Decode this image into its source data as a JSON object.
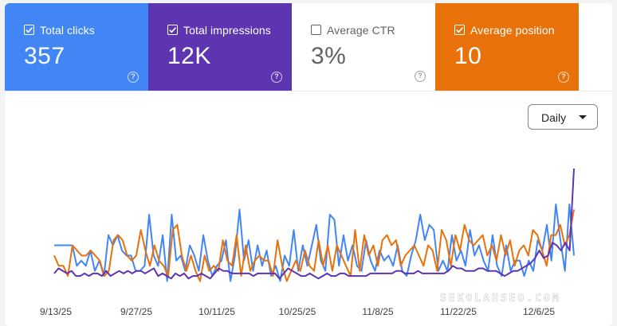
{
  "metrics": [
    {
      "label": "Total clicks",
      "value": "357",
      "checked": true,
      "color": "#4285f4"
    },
    {
      "label": "Total impressions",
      "value": "12K",
      "checked": true,
      "color": "#5e35b1"
    },
    {
      "label": "Average CTR",
      "value": "3%",
      "checked": false,
      "color": "#ffffff"
    },
    {
      "label": "Average position",
      "value": "10",
      "checked": true,
      "color": "#e8710a"
    }
  ],
  "help_glyph": "?",
  "granularity": {
    "label": "Daily"
  },
  "watermark": "SEKOLAHSEO.COM",
  "chart_data": {
    "type": "line",
    "x_tick_labels": [
      "9/13/25",
      "9/27/25",
      "10/11/25",
      "10/25/25",
      "11/8/25",
      "11/22/25",
      "12/6/25"
    ],
    "y_axis_shown": false,
    "grid": false,
    "series": [
      {
        "color": "#4285f4",
        "values": [
          8,
          8,
          8,
          8,
          8,
          4,
          5,
          4,
          7,
          3,
          5,
          2,
          10,
          8,
          10,
          7,
          6,
          6,
          3,
          3,
          4,
          14,
          6,
          4,
          10,
          1,
          14,
          5,
          6,
          3,
          8,
          6,
          3,
          10,
          5,
          2,
          4,
          5,
          9,
          1,
          6,
          15,
          5,
          9,
          3,
          8,
          4,
          7,
          2,
          4,
          1,
          6,
          4,
          11,
          3,
          8,
          4,
          8,
          12,
          5,
          3,
          14,
          13,
          4,
          10,
          5,
          8,
          4,
          3,
          9,
          5,
          3,
          7,
          5,
          6,
          4,
          8,
          3,
          2,
          6,
          9,
          14,
          9,
          12,
          11,
          3,
          5,
          3,
          10,
          5,
          7,
          4,
          11,
          6,
          8,
          5,
          3,
          10,
          4,
          2,
          8,
          3,
          5,
          5,
          2,
          5,
          3,
          9,
          7,
          12,
          5,
          16,
          9,
          3,
          16,
          6
        ]
      },
      {
        "color": "#e8710a",
        "values": [
          6,
          4,
          4,
          2,
          8,
          7,
          6,
          6,
          7,
          6,
          5,
          2,
          3,
          9,
          10,
          9,
          6,
          5,
          6,
          11,
          7,
          4,
          8,
          5,
          4,
          2,
          11,
          12,
          6,
          3,
          6,
          3,
          1,
          6,
          3,
          4,
          3,
          9,
          5,
          4,
          10,
          2,
          8,
          3,
          5,
          6,
          5,
          5,
          2,
          9,
          4,
          1,
          3,
          5,
          3,
          7,
          4,
          3,
          9,
          4,
          8,
          3,
          8,
          6,
          4,
          2,
          11,
          3,
          10,
          6,
          8,
          4,
          9,
          10,
          8,
          9,
          4,
          6,
          7,
          8,
          6,
          4,
          8,
          7,
          3,
          11,
          9,
          4,
          10,
          7,
          12,
          9,
          8,
          9,
          10,
          6,
          8,
          5,
          10,
          6,
          9,
          4,
          7,
          8,
          6,
          11,
          10,
          7,
          4,
          10,
          10,
          12,
          8,
          10,
          15
        ]
      },
      {
        "color": "#5e35b1",
        "values": [
          2.5,
          3.5,
          3,
          2.5,
          3,
          2,
          2,
          2.5,
          2,
          2.5,
          2.5,
          2,
          3,
          2,
          2.5,
          3,
          2.5,
          3,
          2.5,
          3,
          3,
          2.5,
          3,
          3.5,
          2,
          2.5,
          2,
          1.5,
          2.5,
          2,
          2.5,
          1.5,
          2,
          2,
          2.5,
          2,
          1.5,
          2.5,
          3.5,
          3,
          3,
          2.5,
          2.5,
          2.5,
          2.5,
          2.5,
          2,
          2.5,
          2.5,
          2.5,
          2.5,
          2.5,
          1.5,
          2.5,
          3.5,
          3,
          2.5,
          2,
          2,
          2.5,
          2,
          1.5,
          2,
          2.5,
          2,
          2,
          2.5,
          2.5,
          2,
          2,
          2,
          2,
          2,
          2.5,
          2.5,
          2.5,
          2.5,
          2.5,
          2.5,
          3,
          3,
          2.5,
          2.5,
          2.5,
          3,
          2.5,
          2.5,
          2.5,
          2.5,
          2.5,
          2.5,
          3,
          4,
          3.5,
          3.5,
          3,
          3,
          3,
          3.5,
          3.5,
          3,
          3,
          3,
          2.5,
          2,
          2.5,
          3,
          3,
          3.5,
          4,
          4.5,
          5.5,
          7,
          5.5,
          6,
          8.5,
          8,
          7,
          8.5,
          7,
          23
        ]
      }
    ]
  }
}
